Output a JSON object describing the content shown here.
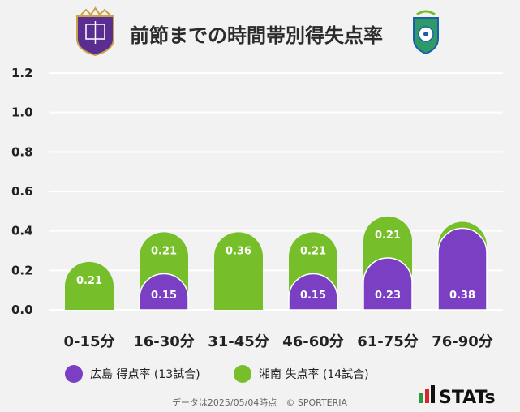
{
  "title": "前節までの時間帯別得失点率",
  "chart_data": {
    "type": "bar",
    "title": "前節までの時間帯別得失点率",
    "categories": [
      "0-15分",
      "16-30分",
      "31-45分",
      "46-60分",
      "61-75分",
      "76-90分"
    ],
    "ylim": [
      0,
      1.2
    ],
    "yticks": [
      "0.0",
      "0.2",
      "0.4",
      "0.6",
      "0.8",
      "1.0",
      "1.2"
    ],
    "grid": true,
    "legend_position": "bottom",
    "series": [
      {
        "name": "広島 得点率 (13試合)",
        "color": "#7b3fc4",
        "values": [
          null,
          0.15,
          null,
          0.15,
          0.23,
          0.38
        ],
        "labels": [
          "",
          "0.15",
          "",
          "0.15",
          "0.23",
          "0.38"
        ]
      },
      {
        "name": "湘南 失点率 (14試合)",
        "color": "#77bf2a",
        "values": [
          0.21,
          0.21,
          0.36,
          0.21,
          0.21,
          null
        ],
        "labels": [
          "0.21",
          "0.21",
          "0.36",
          "0.21",
          "0.21",
          ""
        ]
      }
    ]
  },
  "footer": "データは2025/05/04時点　© SPORTERIA",
  "brand": "STATs",
  "logos": {
    "left": "sanfrecce-hiroshima-emblem",
    "right": "shonan-bellmare-emblem"
  }
}
